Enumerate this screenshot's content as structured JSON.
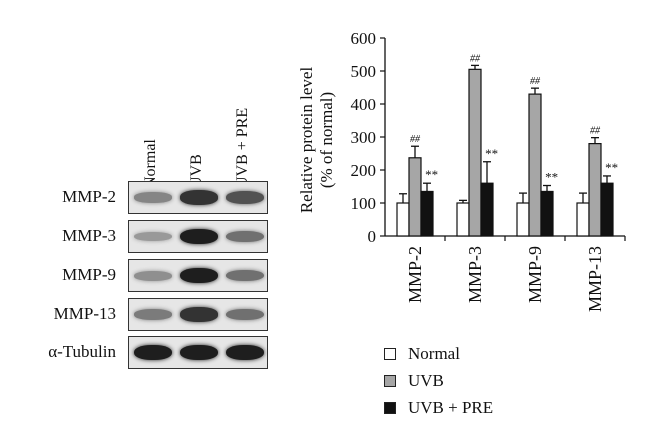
{
  "blot": {
    "lanes": [
      "Normal",
      "UVB",
      "UVB + PRE"
    ],
    "rows": [
      {
        "label": "MMP-2",
        "intensity": [
          0.45,
          0.85,
          0.7
        ]
      },
      {
        "label": "MMP-3",
        "intensity": [
          0.35,
          0.95,
          0.55
        ]
      },
      {
        "label": "MMP-9",
        "intensity": [
          0.4,
          0.95,
          0.55
        ]
      },
      {
        "label": "MMP-13",
        "intensity": [
          0.5,
          0.85,
          0.55
        ]
      },
      {
        "label": "α-Tubulin",
        "intensity": [
          0.95,
          0.95,
          0.95
        ]
      }
    ]
  },
  "chart_data": {
    "type": "bar",
    "categories": [
      "MMP-2",
      "MMP-3",
      "MMP-9",
      "MMP-13"
    ],
    "ylabel_line1": "Relative protein level",
    "ylabel_line2": "(% of normal)",
    "ylim": [
      0,
      600
    ],
    "yticks": [
      "0",
      "100",
      "200",
      "300",
      "400",
      "500",
      "600"
    ],
    "series": [
      {
        "name": "Normal",
        "values": [
          100,
          100,
          100,
          100
        ],
        "errors": [
          28,
          8,
          30,
          30
        ],
        "color": "#ffffff",
        "marker": ""
      },
      {
        "name": "UVB",
        "values": [
          237,
          505,
          430,
          280
        ],
        "errors": [
          35,
          12,
          18,
          18
        ],
        "color": "#a6a6a6",
        "marker": "##"
      },
      {
        "name": "UVB + PRE",
        "values": [
          135,
          160,
          135,
          160
        ],
        "errors": [
          25,
          65,
          18,
          22
        ],
        "color": "#111111",
        "marker": "**"
      }
    ],
    "legend_position": "bottom-right"
  }
}
